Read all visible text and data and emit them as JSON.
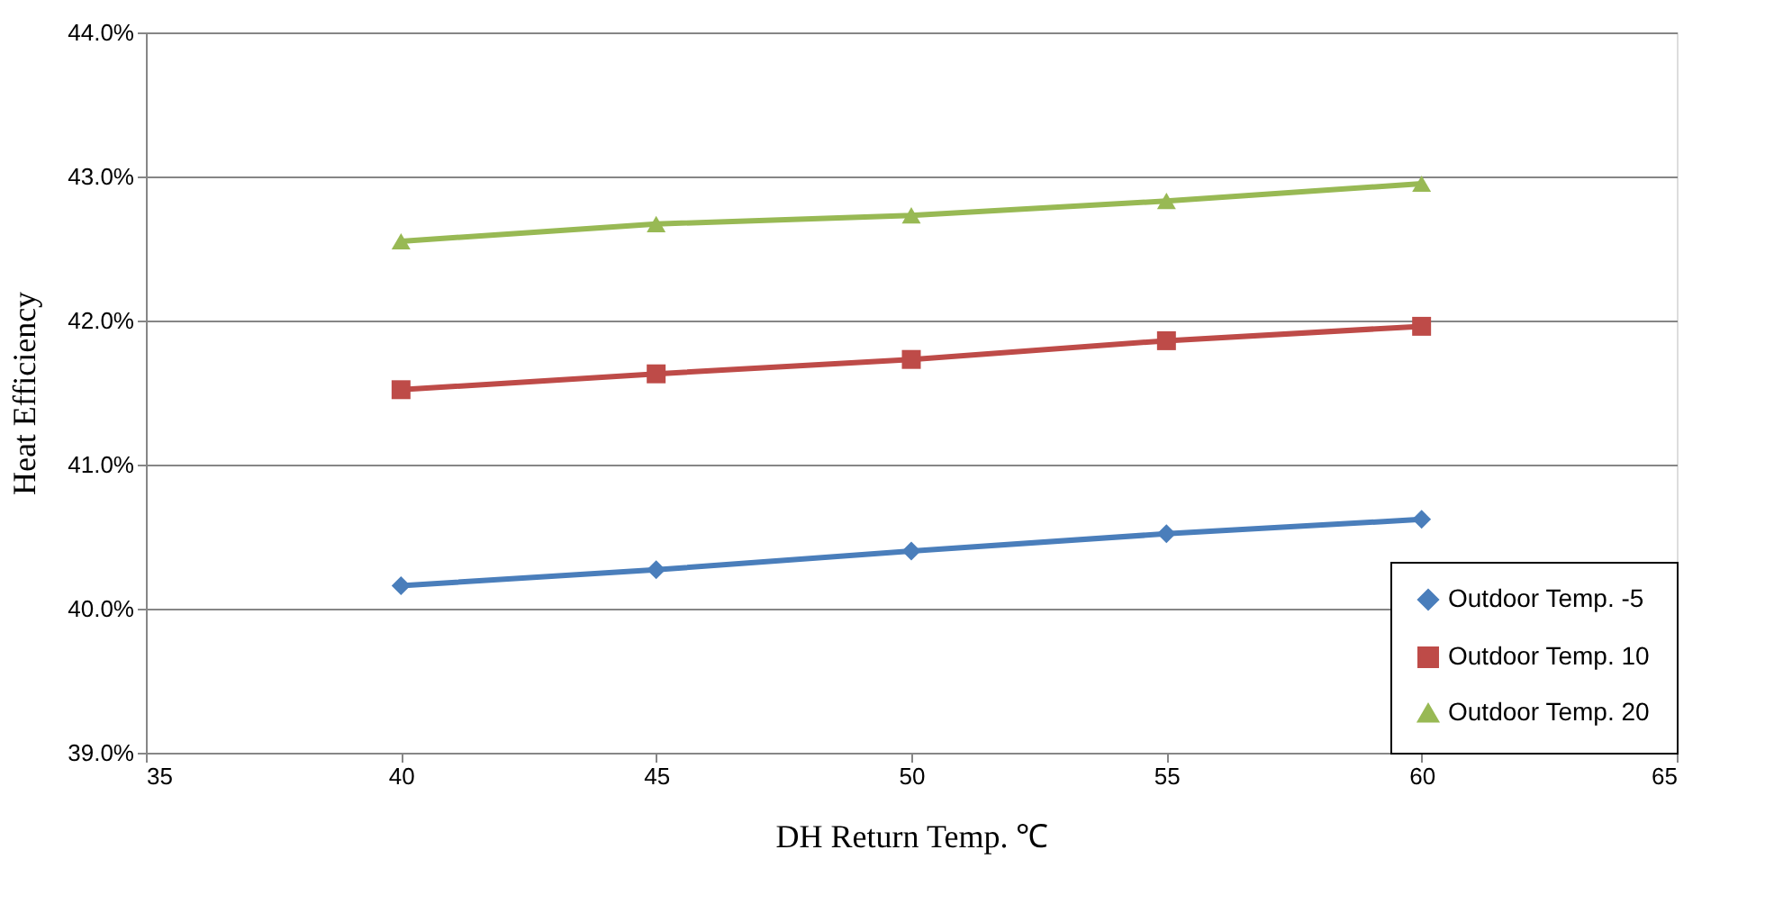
{
  "chart_data": {
    "type": "line",
    "xlabel": "DH Return Temp. ℃",
    "ylabel": "Heat Efficiency",
    "x": [
      40,
      45,
      50,
      55,
      60
    ],
    "series": [
      {
        "name": "Outdoor Temp. -5",
        "color": "#4a7ebb",
        "marker": "diamond",
        "values": [
          40.16,
          40.27,
          40.4,
          40.52,
          40.62
        ]
      },
      {
        "name": "Outdoor Temp. 10",
        "color": "#be4b48",
        "marker": "square",
        "values": [
          41.52,
          41.63,
          41.73,
          41.86,
          41.96
        ]
      },
      {
        "name": "Outdoor Temp. 20",
        "color": "#98b954",
        "marker": "triangle",
        "values": [
          42.55,
          42.67,
          42.73,
          42.83,
          42.95
        ]
      }
    ],
    "xlim": [
      35,
      65
    ],
    "xticks": [
      35,
      40,
      45,
      50,
      55,
      60,
      65
    ],
    "ylim": [
      39,
      44
    ],
    "yticks": [
      {
        "value": 39,
        "label": "39.0%"
      },
      {
        "value": 40,
        "label": "40.0%"
      },
      {
        "value": 41,
        "label": "41.0%"
      },
      {
        "value": 42,
        "label": "42.0%"
      },
      {
        "value": 43,
        "label": "43.0%"
      },
      {
        "value": 44,
        "label": "44.0%"
      }
    ],
    "grid": "y",
    "legend": "bottom right",
    "line_style": "solid"
  }
}
